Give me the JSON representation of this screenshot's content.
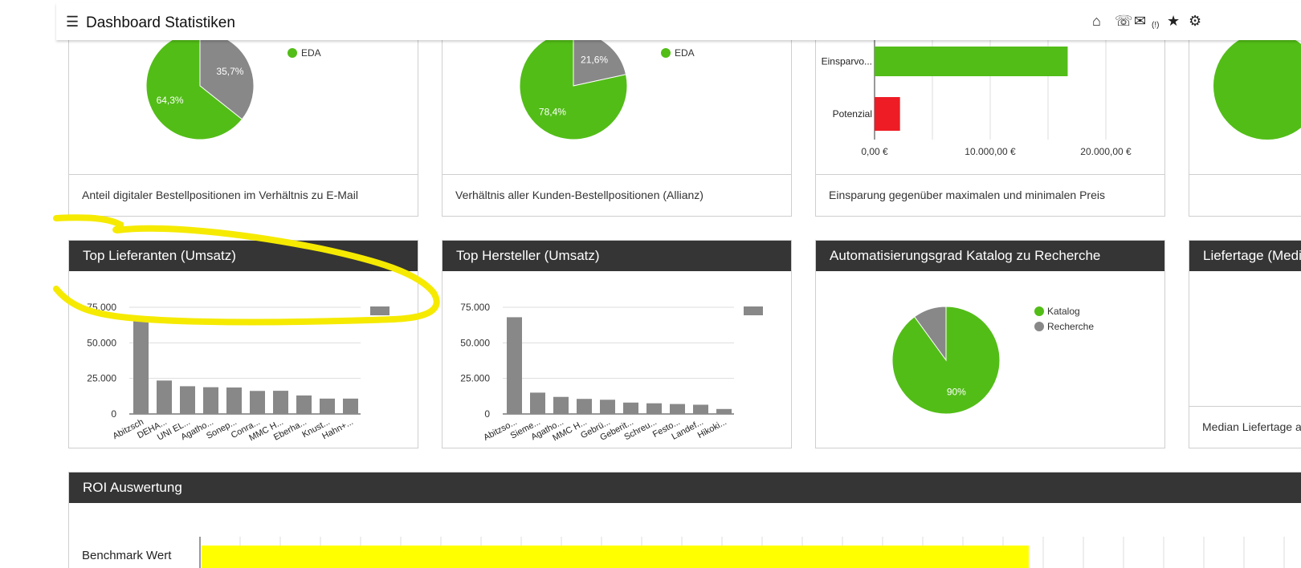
{
  "app": {
    "title": "Dashboard Statistiken",
    "icons": [
      "menu-icon",
      "home-icon",
      "phone-icon",
      "chat-icon",
      "star-icon",
      "gear-icon"
    ],
    "chat_badge": "(!)"
  },
  "row1": {
    "panel1": {
      "legend": "EDA",
      "footer": "Anteil digitaler Bestellpositionen im Verhältnis zu E-Mail"
    },
    "panel2": {
      "legend": "EDA",
      "footer": "Verhältnis aller Kunden-Bestellpositionen (Allianz)"
    },
    "panel3": {
      "footer": "Einsparung gegenüber maximalen und minimalen Preis"
    }
  },
  "row2": {
    "panel1": {
      "title": "Top Lieferanten (Umsatz)"
    },
    "panel2": {
      "title": "Top Hersteller (Umsatz)"
    },
    "panel3": {
      "title": "Automatisierungsgrad Katalog zu Recherche"
    },
    "panel4": {
      "title": "Liefertage (Medi",
      "footer": "Median Liefertage al"
    }
  },
  "roi": {
    "title": "ROI Auswertung",
    "bar_label": "Benchmark Wert"
  },
  "colors": {
    "green": "#52bd17",
    "gray": "#888888",
    "red": "#ee1c25",
    "header": "#353535",
    "highlight": "#f5ea00",
    "roi_bar": "#ffff00"
  },
  "chart_data": [
    {
      "type": "pie",
      "slices": [
        {
          "label": "64,3%",
          "value": 64.3,
          "color": "#52bd17"
        },
        {
          "label": "35,7%",
          "value": 35.7,
          "color": "#888888"
        }
      ],
      "legend": [
        "EDA"
      ]
    },
    {
      "type": "pie",
      "slices": [
        {
          "label": "78,4%",
          "value": 78.4,
          "color": "#52bd17"
        },
        {
          "label": "21,6%",
          "value": 21.6,
          "color": "#888888"
        }
      ],
      "legend": [
        "EDA"
      ]
    },
    {
      "type": "bar",
      "orientation": "horizontal",
      "categories": [
        "Einsparvo...",
        "Potenzial"
      ],
      "values": [
        16700,
        2200
      ],
      "colors": [
        "#52bd17",
        "#ee1c25"
      ],
      "xlim": [
        0,
        25000
      ],
      "xticks": [
        "0,00 €",
        "10.000,00 €",
        "20.000,00 €"
      ],
      "xtick_values": [
        0,
        10000,
        20000
      ]
    },
    {
      "type": "bar",
      "categories": [
        "Abitzsch",
        "DEHA...",
        "UNI EL...",
        "Agatho...",
        "Sonep...",
        "Conra...",
        "MMC H...",
        "Eberha...",
        "Knust...",
        "Hahn+..."
      ],
      "values": [
        68000,
        23500,
        19500,
        18800,
        18600,
        16200,
        16300,
        13000,
        10800,
        10800
      ],
      "yticks": [
        "0",
        "25.000",
        "50.000",
        "75.000"
      ],
      "ytick_values": [
        0,
        25000,
        50000,
        75000
      ],
      "ylim": [
        0,
        75000
      ]
    },
    {
      "type": "bar",
      "categories": [
        "Abitzso...",
        "Sieme...",
        "Agatho...",
        "MMC H...",
        "Gebrü...",
        "Geberit...",
        "Schreu...",
        "Festo...",
        "Landef...",
        "Hikoki..."
      ],
      "values": [
        68000,
        15000,
        12000,
        10600,
        10000,
        8000,
        7500,
        7000,
        6500,
        3500
      ],
      "yticks": [
        "0",
        "25.000",
        "50.000",
        "75.000"
      ],
      "ytick_values": [
        0,
        25000,
        50000,
        75000
      ],
      "ylim": [
        0,
        75000
      ]
    },
    {
      "type": "pie",
      "slices": [
        {
          "label": "90%",
          "value": 90,
          "color": "#52bd17"
        },
        {
          "label": "",
          "value": 10,
          "color": "#888888"
        }
      ],
      "legend": [
        "Katalog",
        "Recherche"
      ]
    },
    {
      "type": "bar",
      "orientation": "horizontal",
      "categories": [
        "Benchmark Wert"
      ],
      "color": "#ffff00"
    }
  ]
}
